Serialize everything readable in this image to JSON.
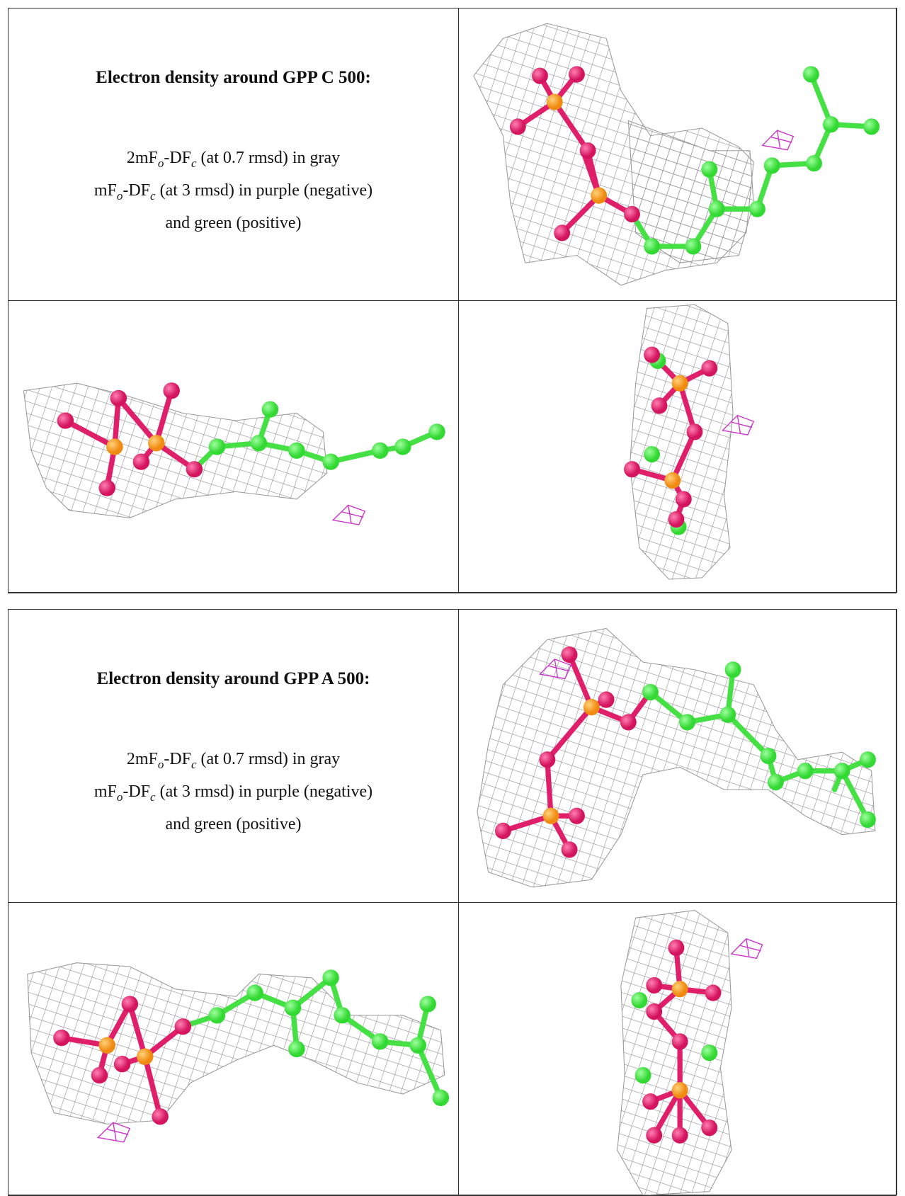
{
  "panels": [
    {
      "title": "Electron density around GPP C 500:",
      "description": [
        [
          "2mF",
          "o",
          "-DF",
          "c",
          " (at 0.7 rmsd) in gray"
        ],
        [
          "mF",
          "o",
          "-DF",
          "c",
          " (at 3 rmsd) in purple (negative)"
        ],
        [
          "and green (positive)"
        ]
      ]
    },
    {
      "title": "Electron density around GPP A 500:",
      "description": [
        [
          "2mF",
          "o",
          "-DF",
          "c",
          " (at 0.7 rmsd) in gray"
        ],
        [
          "mF",
          "o",
          "-DF",
          "c",
          " (at 3 rmsd) in purple (negative)"
        ],
        [
          "and green (positive)"
        ]
      ]
    }
  ]
}
